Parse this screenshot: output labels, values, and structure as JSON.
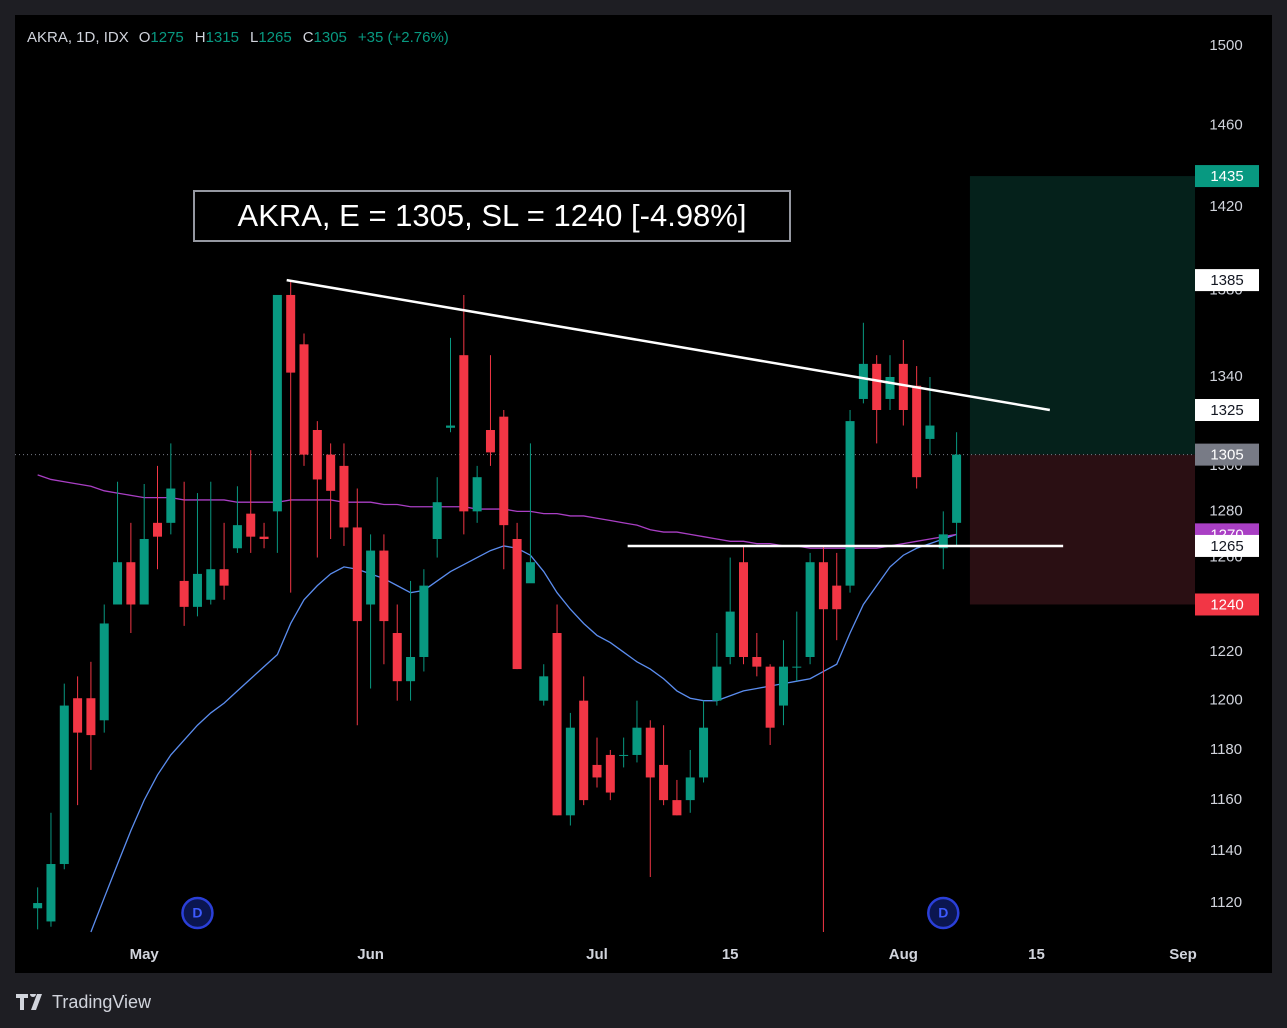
{
  "chart_data": {
    "type": "candlestick",
    "header": {
      "symbol": "AKRA, 1D, IDX",
      "labels": {
        "open": "O",
        "high": "H",
        "low": "L",
        "close": "C"
      },
      "open": 1275,
      "high": 1315,
      "low": 1265,
      "close": 1305,
      "change": "+35 (+2.76%)"
    },
    "annotation": "AKRA, E = 1305, SL = 1240 [-4.98%]",
    "brand": "TradingView",
    "log_scale": true,
    "grid": false,
    "up_color": "#089981",
    "down_color": "#f23645",
    "ylim": [
      1109,
      1516
    ],
    "yticks": [
      1120,
      1140,
      1160,
      1180,
      1200,
      1220,
      1260,
      1280,
      1300,
      1340,
      1380,
      1420,
      1460,
      1500
    ],
    "xlim": [
      -1.7,
      86.9
    ],
    "xticks": [
      {
        "value": 8,
        "label": "May"
      },
      {
        "value": 25,
        "label": "Jun"
      },
      {
        "value": 42,
        "label": "Jul"
      },
      {
        "value": 52,
        "label": "15"
      },
      {
        "value": 65,
        "label": "Aug"
      },
      {
        "value": 75,
        "label": "15"
      },
      {
        "value": 86,
        "label": "Sep"
      }
    ],
    "candles": {
      "open": [
        1118,
        1113,
        1135,
        1201,
        1201,
        1192,
        1240,
        1258,
        1240,
        1275,
        1275,
        1250,
        1239,
        1242,
        1255,
        1264,
        1279,
        1269,
        1280,
        1378,
        1355,
        1316,
        1305,
        1300,
        1273,
        1240,
        1263,
        1228,
        1208,
        1218,
        1268,
        1317,
        1350,
        1280,
        1316,
        1322,
        1268,
        1249,
        1200,
        1228,
        1154,
        1200,
        1174,
        1178,
        1178,
        1178,
        1189,
        1174,
        1160,
        1160,
        1169,
        1200,
        1218,
        1258,
        1218,
        1214,
        1198,
        1214,
        1218,
        1258,
        1248,
        1248,
        1330,
        1346,
        1330,
        1346,
        1336,
        1312,
        1264,
        1275
      ],
      "high": [
        1126,
        1155,
        1207,
        1210,
        1216,
        1240,
        1293,
        1275,
        1292,
        1300,
        1310,
        1293,
        1288,
        1293,
        1275,
        1291,
        1307,
        1275,
        1378,
        1385,
        1360,
        1320,
        1310,
        1310,
        1290,
        1270,
        1270,
        1240,
        1250,
        1255,
        1295,
        1358,
        1378,
        1300,
        1350,
        1325,
        1275,
        1310,
        1215,
        1240,
        1195,
        1210,
        1185,
        1180,
        1185,
        1200,
        1192,
        1190,
        1168,
        1180,
        1200,
        1228,
        1260,
        1265,
        1228,
        1215,
        1225,
        1237,
        1262,
        1265,
        1262,
        1325,
        1365,
        1350,
        1350,
        1357,
        1345,
        1340,
        1280,
        1315
      ],
      "low": [
        1110,
        1111,
        1133,
        1158,
        1172,
        1187,
        1240,
        1228,
        1240,
        1255,
        1270,
        1231,
        1235,
        1240,
        1242,
        1262,
        1262,
        1264,
        1262,
        1245,
        1300,
        1260,
        1268,
        1265,
        1190,
        1205,
        1215,
        1200,
        1200,
        1212,
        1260,
        1315,
        1270,
        1275,
        1300,
        1255,
        1213,
        1250,
        1198,
        1154,
        1150,
        1158,
        1165,
        1160,
        1173,
        1175,
        1130,
        1158,
        1154,
        1155,
        1167,
        1198,
        1215,
        1215,
        1210,
        1182,
        1190,
        1208,
        1215,
        1109,
        1225,
        1245,
        1328,
        1310,
        1325,
        1318,
        1290,
        1305,
        1255,
        1265
      ],
      "close": [
        1120,
        1135,
        1198,
        1187,
        1186,
        1232,
        1258,
        1240,
        1268,
        1269,
        1290,
        1239,
        1253,
        1255,
        1248,
        1274,
        1269,
        1268,
        1378,
        1342,
        1305,
        1294,
        1289,
        1273,
        1233,
        1263,
        1233,
        1208,
        1218,
        1248,
        1284,
        1318,
        1280,
        1295,
        1306,
        1274,
        1213,
        1258,
        1210,
        1154,
        1189,
        1160,
        1169,
        1163,
        1178,
        1189,
        1169,
        1160,
        1154,
        1169,
        1189,
        1214,
        1237,
        1218,
        1214,
        1189,
        1214,
        1214,
        1258,
        1238,
        1238,
        1320,
        1346,
        1325,
        1340,
        1325,
        1295,
        1318,
        1270,
        1305
      ]
    },
    "series": [
      {
        "color": "#5b8def",
        "values": [
          null,
          null,
          null,
          null,
          1109,
          1122,
          1135,
          1148,
          1160,
          1170,
          1178,
          1184,
          1190,
          1195,
          1199,
          1204,
          1209,
          1214,
          1219,
          1232,
          1242,
          1248,
          1253,
          1256,
          1255,
          1253,
          1251,
          1248,
          1245,
          1246,
          1250,
          1254,
          1257,
          1260,
          1263,
          1265,
          1264,
          1261,
          1254,
          1245,
          1238,
          1232,
          1227,
          1224,
          1220,
          1216,
          1213,
          1209,
          1204,
          1201,
          1200,
          1200,
          1202,
          1204,
          1205,
          1206,
          1207,
          1208,
          1209,
          1212,
          1215,
          1228,
          1240,
          1248,
          1256,
          1261,
          1264,
          1266,
          1268,
          1270
        ]
      },
      {
        "color": "#a93fc4",
        "values": [
          1296,
          1294,
          1293,
          1292,
          1291,
          1289,
          1288,
          1287,
          1286,
          1286,
          1286,
          1285,
          1285,
          1285,
          1285,
          1284,
          1284,
          1284,
          1284,
          1285,
          1285,
          1285,
          1285,
          1284,
          1284,
          1284,
          1283,
          1283,
          1282,
          1282,
          1282,
          1282,
          1282,
          1281,
          1281,
          1281,
          1280,
          1280,
          1279,
          1279,
          1278,
          1278,
          1277,
          1276,
          1275,
          1274,
          1272,
          1271,
          1271,
          1270,
          1269,
          1268,
          1267,
          1267,
          1266,
          1266,
          1265,
          1265,
          1264,
          1264,
          1264,
          1264,
          1264,
          1264,
          1265,
          1266,
          1267,
          1268,
          1269,
          1270
        ]
      }
    ],
    "drawings": {
      "trendline": {
        "color": "#ffffff",
        "points": [
          {
            "x": 18.7,
            "y": 1385
          },
          {
            "x": 76,
            "y": 1325
          }
        ]
      },
      "hline": {
        "color": "#ffffff",
        "x1": 44.3,
        "x2": 77,
        "y": 1265
      }
    },
    "position": {
      "start": 70,
      "target": 1435,
      "entry": 1305,
      "stop": 1240
    },
    "dividends": [
      {
        "index": 12,
        "label": "D"
      },
      {
        "index": 68,
        "label": "D"
      }
    ]
  }
}
